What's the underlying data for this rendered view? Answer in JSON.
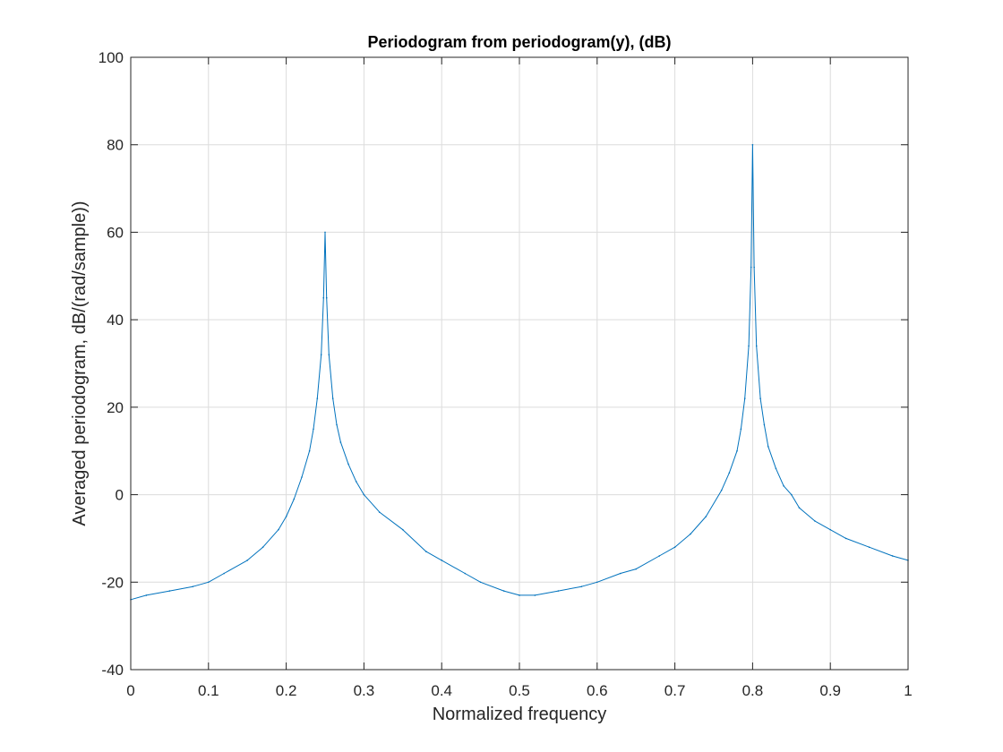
{
  "chart_data": {
    "type": "line",
    "title": "Periodogram from periodogram(y), (dB)",
    "xlabel": "Normalized frequency",
    "ylabel": "Averaged periodogram, dB/(rad/sample))",
    "xlim": [
      0,
      1
    ],
    "ylim": [
      -40,
      100
    ],
    "x_ticks": [
      0,
      0.1,
      0.2,
      0.3,
      0.4,
      0.5,
      0.6,
      0.7,
      0.8,
      0.9,
      1
    ],
    "x_tick_labels": [
      "0",
      "0.1",
      "0.2",
      "0.3",
      "0.4",
      "0.5",
      "0.6",
      "0.7",
      "0.8",
      "0.9",
      "1"
    ],
    "y_ticks": [
      -40,
      -20,
      0,
      20,
      40,
      60,
      80,
      100
    ],
    "y_tick_labels": [
      "-40",
      "-20",
      "0",
      "20",
      "40",
      "60",
      "80",
      "100"
    ],
    "grid": true,
    "series": [
      {
        "color": "#0072BD",
        "x": [
          0,
          0.02,
          0.05,
          0.08,
          0.1,
          0.12,
          0.15,
          0.17,
          0.19,
          0.2,
          0.21,
          0.22,
          0.23,
          0.235,
          0.24,
          0.245,
          0.248,
          0.25,
          0.252,
          0.255,
          0.26,
          0.265,
          0.27,
          0.28,
          0.29,
          0.3,
          0.32,
          0.35,
          0.38,
          0.4,
          0.43,
          0.45,
          0.48,
          0.5,
          0.52,
          0.55,
          0.58,
          0.6,
          0.63,
          0.65,
          0.68,
          0.7,
          0.72,
          0.74,
          0.76,
          0.77,
          0.78,
          0.785,
          0.79,
          0.795,
          0.798,
          0.8,
          0.802,
          0.805,
          0.81,
          0.815,
          0.82,
          0.83,
          0.84,
          0.85,
          0.86,
          0.88,
          0.9,
          0.92,
          0.95,
          0.98,
          1
        ],
        "y": [
          -24,
          -23,
          -22,
          -21,
          -20,
          -18,
          -15,
          -12,
          -8,
          -5,
          -1,
          4,
          10,
          15,
          22,
          32,
          45,
          60,
          45,
          32,
          22,
          16,
          12,
          7,
          3,
          0,
          -4,
          -8,
          -13,
          -15,
          -18,
          -20,
          -22,
          -23,
          -23,
          -22,
          -21,
          -20,
          -18,
          -17,
          -14,
          -12,
          -9,
          -5,
          1,
          5,
          10,
          15,
          22,
          34,
          52,
          80,
          52,
          34,
          22,
          16,
          11,
          6,
          2,
          0,
          -3,
          -6,
          -8,
          -10,
          -12,
          -14,
          -15
        ]
      }
    ]
  }
}
